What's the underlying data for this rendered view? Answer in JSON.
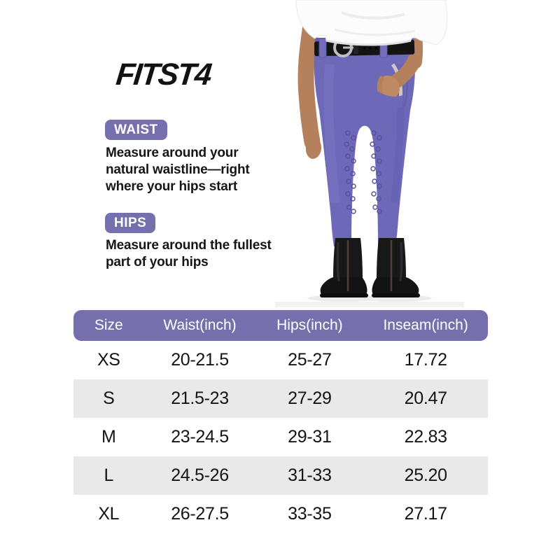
{
  "brand": {
    "logo_text": "FITST4"
  },
  "measure_guide": {
    "waist": {
      "label": "WAIST",
      "lines": [
        "Measure around your",
        "natural waistline—right",
        "where your hips start"
      ]
    },
    "hips": {
      "label": "HIPS",
      "lines": [
        "Measure around the fullest",
        "part of your hips"
      ]
    }
  },
  "size_table": {
    "columns": [
      "Size",
      "Waist(inch)",
      "Hips(inch)",
      "Inseam(inch)"
    ],
    "rows": [
      {
        "size": "XS",
        "waist": "20-21.5",
        "hips": "25-27",
        "inseam": "17.72"
      },
      {
        "size": "S",
        "waist": "21.5-23",
        "hips": "27-29",
        "inseam": "20.47"
      },
      {
        "size": "M",
        "waist": "23-24.5",
        "hips": "29-31",
        "inseam": "22.83"
      },
      {
        "size": "L",
        "waist": "24.5-26",
        "hips": "31-33",
        "inseam": "25.20"
      },
      {
        "size": "XL",
        "waist": "26-27.5",
        "hips": "33-35",
        "inseam": "27.17"
      }
    ]
  },
  "colors": {
    "accent_purple": "#7570ad",
    "row_alt_gray": "#e9e9e9",
    "text_dark": "#1a1a1a",
    "breeches_purple": "#6e68b8"
  }
}
